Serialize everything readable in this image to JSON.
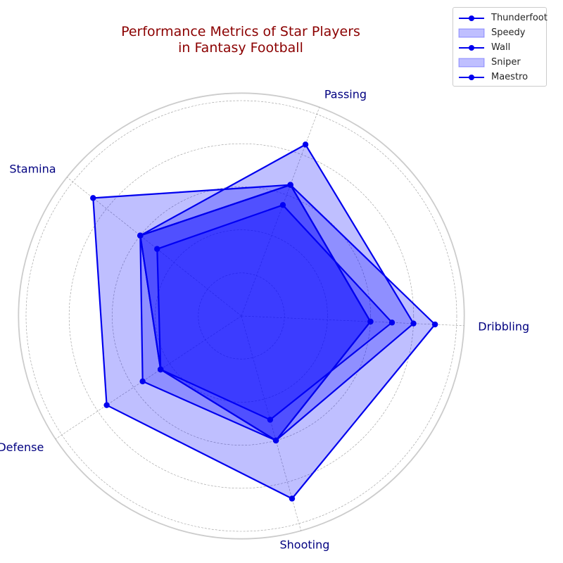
{
  "chart_data": {
    "type": "radar",
    "title": "Performance Metrics of Star Players in Fantasy Football",
    "title_lines": [
      "Performance Metrics of Star Players",
      "in Fantasy Football"
    ],
    "axes": [
      "Dribbling",
      "Shooting",
      "Defense",
      "Stamina",
      "Passing"
    ],
    "rlim": [
      0,
      100
    ],
    "grid": true,
    "legend_position": "top-right",
    "series": [
      {
        "name": "Thunderfoot",
        "values": [
          90,
          88,
          75,
          88,
          65
        ]
      },
      {
        "name": "Speedy",
        "values": [
          80,
          60,
          55,
          60,
          85
        ]
      },
      {
        "name": "Wall",
        "values": [
          70,
          50,
          45,
          50,
          55
        ]
      },
      {
        "name": "Sniper",
        "values": [
          60,
          60,
          45,
          60,
          65
        ]
      },
      {
        "name": "Maestro",
        "values": [
          60,
          60,
          45,
          60,
          65
        ]
      }
    ],
    "colors": {
      "line": "#0000ee",
      "fill": "#0000ff",
      "title": "#8b0000",
      "axis_label": "#000080"
    }
  },
  "legend": {
    "items": [
      {
        "label": "Thunderfoot",
        "style": "line"
      },
      {
        "label": "Speedy",
        "style": "patch"
      },
      {
        "label": "Wall",
        "style": "line"
      },
      {
        "label": "Sniper",
        "style": "patch"
      },
      {
        "label": "Maestro",
        "style": "line"
      }
    ]
  }
}
